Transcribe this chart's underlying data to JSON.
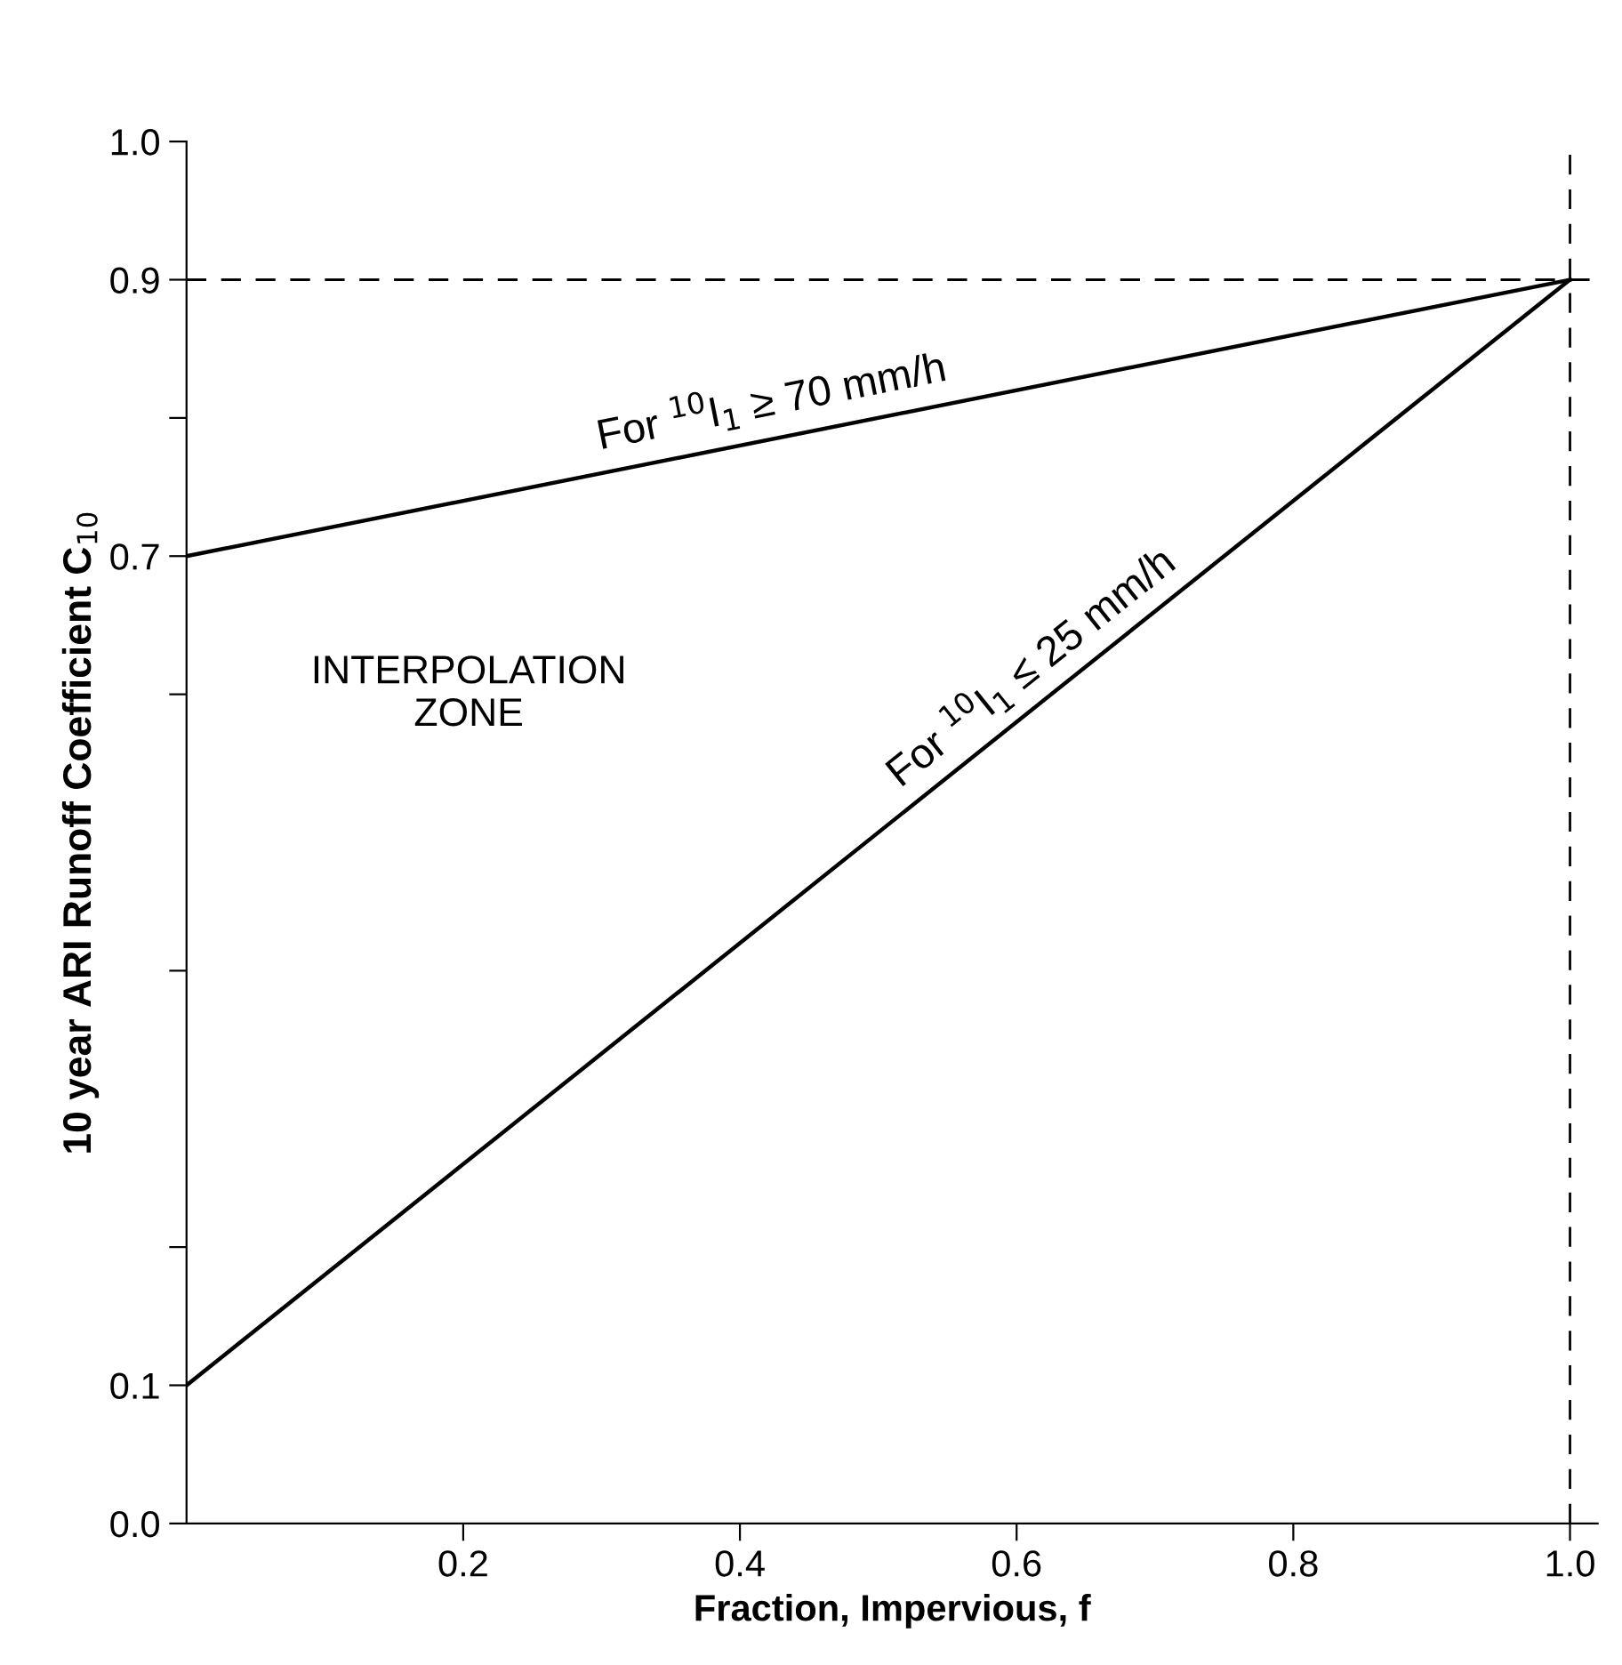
{
  "chart_data": {
    "type": "line",
    "xlabel": "Fraction, Impervious, f",
    "ylabel": "10 year ARI Runoff Coefficient C$_{10}$",
    "x": [
      0,
      1.0
    ],
    "series": [
      {
        "name": "For $^{10}$I$_{1}$ ≥ 70 mm/h",
        "color": "#000000",
        "values": [
          0.7,
          0.9
        ]
      },
      {
        "name": "For $^{10}$I$_{1}$ ≤ 25 mm/h",
        "color": "#000000",
        "values": [
          0.1,
          0.9
        ]
      }
    ],
    "xlim": [
      0,
      1.02
    ],
    "ylim": [
      0,
      1.0
    ],
    "xticks": [
      0.2,
      0.4,
      0.6,
      0.8,
      {
        "value": 1.0,
        "label": "1.0"
      }
    ],
    "yticks": [
      {
        "value": 0.0,
        "label": "0.0"
      },
      0.1,
      {
        "value": 0.2,
        "label": null
      },
      {
        "value": 0.4,
        "label": null
      },
      {
        "value": 0.6,
        "label": null
      },
      0.7,
      {
        "value": 0.8,
        "label": null
      },
      0.9,
      {
        "value": 1.0,
        "label": "1.0"
      }
    ],
    "ref_lines": [
      {
        "axis": "y",
        "value": 0.9,
        "color": "#000000",
        "line_style": "dashed"
      },
      {
        "axis": "x",
        "value": 1.0,
        "color": "#000000",
        "line_style": "dashed"
      }
    ],
    "annotations": [
      "INTERPOLATION\nZONE"
    ],
    "grid": false,
    "legend": false,
    "marker": "none",
    "line_style": "solid"
  }
}
